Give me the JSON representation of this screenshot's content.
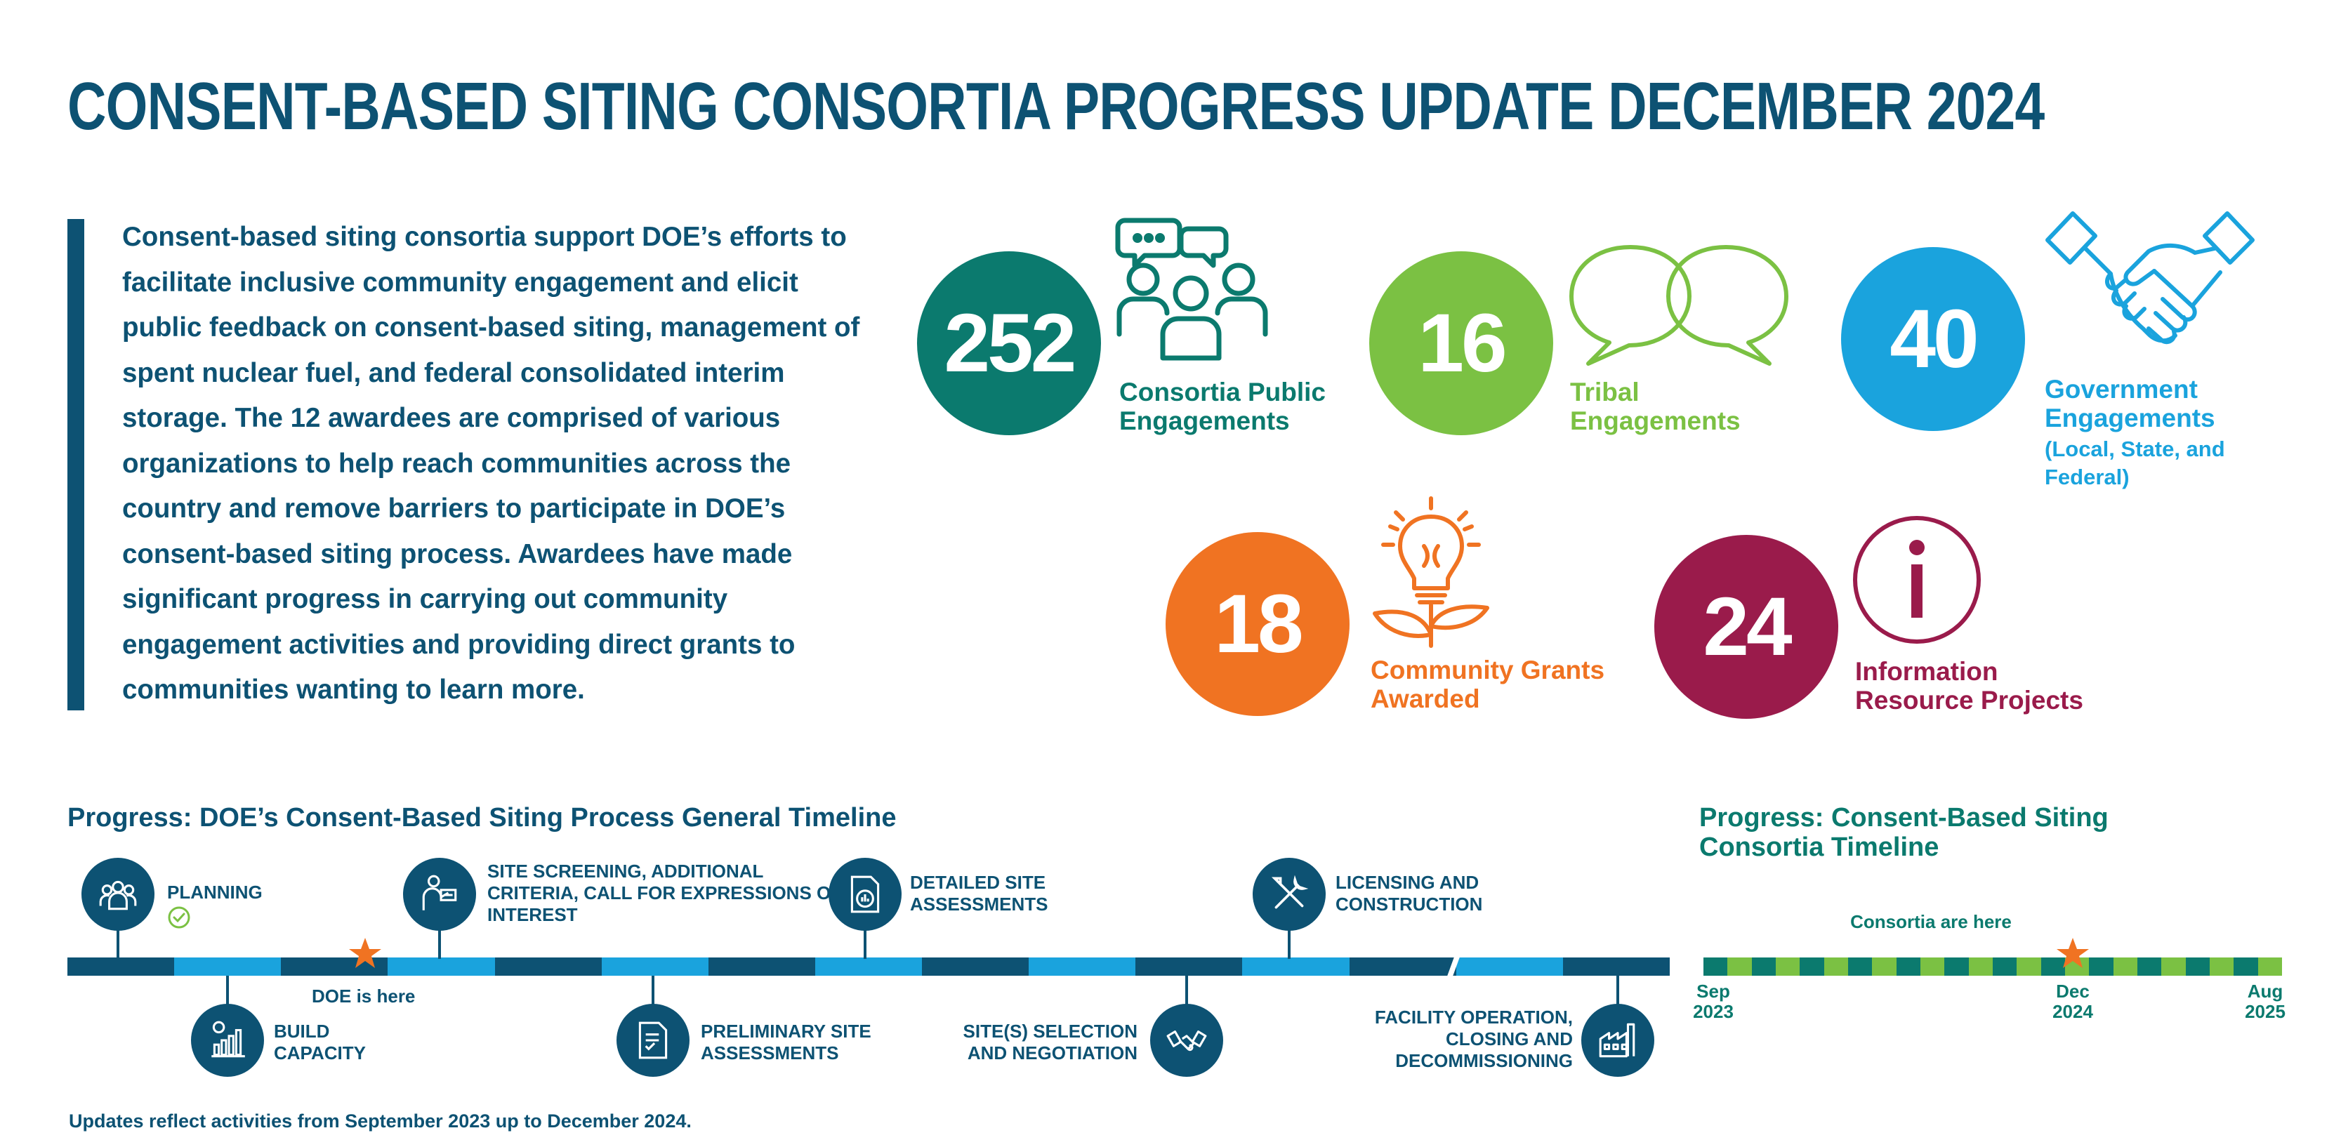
{
  "title": "CONSENT-BASED SITING CONSORTIA PROGRESS UPDATE DECEMBER 2024",
  "intro": "Consent-based siting consortia support DOE’s efforts to facilitate inclusive community engagement and elicit public feedback on consent-based siting, management of spent nuclear fuel, and federal consolidated interim storage. The 12 awardees are comprised of various organizations to help reach communities across the country and remove barriers to participate in DOE’s consent-based siting process. Awardees have made significant progress in carrying out community engagement activities and providing direct grants to communities wanting to learn more.",
  "stats": [
    {
      "value": "252",
      "label": "Consortia Public Engagements",
      "color": "#0b7a6e",
      "icon": "people-discussion-icon"
    },
    {
      "value": "16",
      "label": "Tribal Engagements",
      "color": "#7bc143",
      "icon": "speech-bubbles-icon"
    },
    {
      "value": "40",
      "label": "Government Engagements",
      "sub": "(Local, State, and Federal)",
      "color": "#1aa3dd",
      "icon": "handshake-icon"
    },
    {
      "value": "18",
      "label": "Community Grants Awarded",
      "color": "#f07322",
      "icon": "lightbulb-plant-icon"
    },
    {
      "value": "24",
      "label": "Information Resource Projects",
      "color": "#9a1b4b",
      "icon": "info-icon"
    }
  ],
  "doe_timeline": {
    "heading": "Progress: DOE’s Consent-Based Siting Process General Timeline",
    "marker_label": "DOE is here",
    "steps": [
      {
        "label": "PLANNING",
        "icon": "people-group-icon",
        "done": true
      },
      {
        "label": "BUILD CAPACITY",
        "icon": "bar-chart-icon"
      },
      {
        "label": "SITE SCREENING, ADDITIONAL CRITERIA, CALL FOR EXPRESSIONS OF INTEREST",
        "icon": "presenter-icon"
      },
      {
        "label": "PRELIMINARY SITE ASSESSMENTS",
        "icon": "checklist-document-icon"
      },
      {
        "label": "DETAILED SITE ASSESSMENTS",
        "icon": "report-chart-icon"
      },
      {
        "label": "SITE(S) SELECTION AND NEGOTIATION",
        "icon": "handshake-icon"
      },
      {
        "label": "LICENSING AND CONSTRUCTION",
        "icon": "tools-icon"
      },
      {
        "label": "FACILITY OPERATION, CLOSING AND DECOMMISSIONING",
        "icon": "factory-icon"
      }
    ]
  },
  "consortia_timeline": {
    "heading": "Progress: Consent-Based Siting Consortia Timeline",
    "marker_label": "Consortia are here",
    "ticks": [
      {
        "month": "Sep",
        "year": "2023"
      },
      {
        "month": "Dec",
        "year": "2024"
      },
      {
        "month": "Aug",
        "year": "2025"
      }
    ]
  },
  "footnote": "Updates reflect activities from September 2023 up to December 2024.",
  "colors": {
    "navy": "#0d5273",
    "teal": "#0b7a6e",
    "green": "#7bc143",
    "blue": "#1aa3dd",
    "orange": "#f07322",
    "maroon": "#9a1b4b"
  }
}
